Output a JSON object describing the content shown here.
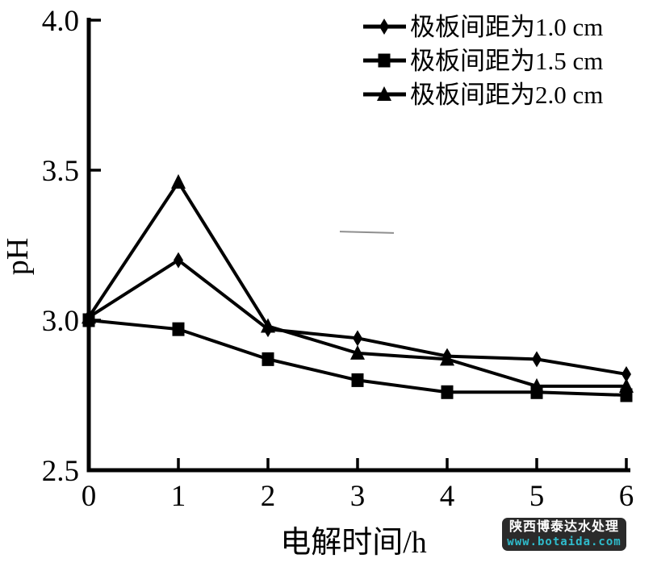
{
  "chart_data": {
    "type": "line",
    "title": "",
    "xlabel": "电解时间/h",
    "ylabel": "pH",
    "xlim": [
      0,
      6
    ],
    "ylim": [
      2.5,
      4.0
    ],
    "grid": false,
    "legend_position": "top-right",
    "x": [
      0,
      1,
      2,
      3,
      4,
      5,
      6
    ],
    "x_tick_labels": [
      "0",
      "1",
      "2",
      "3",
      "4",
      "5",
      "6"
    ],
    "y_ticks": [
      {
        "value": 4.0,
        "label": "4.0"
      },
      {
        "value": 3.5,
        "label": "3.5"
      },
      {
        "value": 3.0,
        "label": "3.0"
      },
      {
        "value": 2.5,
        "label": "2.5"
      }
    ],
    "series": [
      {
        "name": "极板间距为1.0 cm",
        "marker": "diamond",
        "values": [
          3.01,
          3.2,
          2.97,
          2.94,
          2.88,
          2.87,
          2.82
        ]
      },
      {
        "name": "极板间距为1.5 cm",
        "marker": "square",
        "values": [
          3.0,
          2.97,
          2.87,
          2.8,
          2.76,
          2.76,
          2.75
        ]
      },
      {
        "name": "极板间距为2.0 cm",
        "marker": "triangle",
        "values": [
          3.01,
          3.46,
          2.98,
          2.89,
          2.87,
          2.78,
          2.78
        ]
      }
    ]
  },
  "watermark": {
    "line1": "陕西博泰达水处理",
    "line2": "www.botaida.com"
  },
  "colors": {
    "line": "#000000",
    "text": "#000000",
    "watermark_bg": "#2b2b2b",
    "watermark_text": "#ffffff",
    "watermark_url": "#2fbccc",
    "artifact": "#8f8f8f"
  }
}
